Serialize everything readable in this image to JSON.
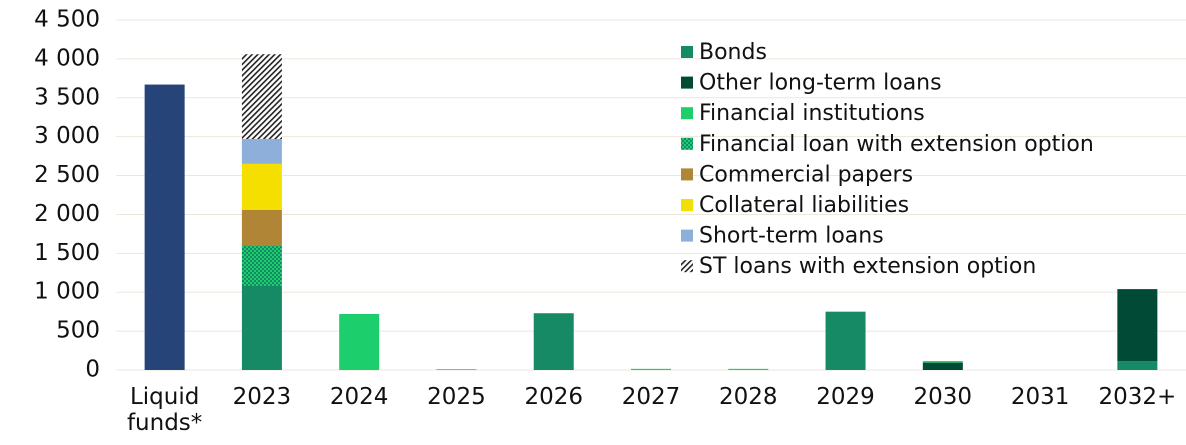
{
  "chart_data": {
    "type": "stacked_bar",
    "categories": [
      "Liquid funds*",
      "2023",
      "2024",
      "2025",
      "2026",
      "2027",
      "2028",
      "2029",
      "2030",
      "2031",
      "2032+"
    ],
    "series": [
      {
        "color": "#264478",
        "values": [
          3670,
          null,
          null,
          null,
          null,
          null,
          null,
          null,
          null,
          null,
          null
        ]
      },
      {
        "name": "Bonds",
        "color": "#168a64",
        "values": [
          null,
          1080,
          null,
          null,
          730,
          null,
          null,
          750,
          null,
          null,
          115
        ]
      },
      {
        "name": "Other long-term loans",
        "color": "#004a36",
        "values": [
          null,
          null,
          null,
          null,
          null,
          null,
          null,
          null,
          95,
          null,
          925
        ]
      },
      {
        "name": "Financial institutions",
        "color": "#1ccf6c",
        "values": [
          null,
          null,
          720,
          10,
          null,
          15,
          15,
          null,
          20,
          null,
          null
        ]
      },
      {
        "name": "Financial loan with extension option",
        "color": "#168a64",
        "pattern": "hatch-green",
        "values": [
          null,
          520,
          null,
          null,
          null,
          null,
          null,
          null,
          null,
          null,
          null
        ]
      },
      {
        "name": "Commercial papers",
        "color": "#b08535",
        "values": [
          null,
          460,
          null,
          null,
          null,
          null,
          null,
          null,
          null,
          null,
          null
        ]
      },
      {
        "name": "Collateral liabilities",
        "color": "#f5df00",
        "values": [
          null,
          590,
          null,
          null,
          null,
          null,
          null,
          null,
          null,
          null,
          null
        ]
      },
      {
        "name": "Short-term loans",
        "color": "#8eafda",
        "values": [
          null,
          320,
          null,
          null,
          null,
          null,
          null,
          null,
          null,
          null,
          null
        ]
      },
      {
        "name": "ST loans with extension option",
        "color": "#ffffff",
        "pattern": "hatch-black",
        "values": [
          null,
          1090,
          null,
          null,
          null,
          null,
          null,
          null,
          null,
          null,
          null
        ]
      }
    ],
    "ylim": [
      0,
      4500
    ],
    "yticks": [
      0,
      500,
      {
        "value": 1000,
        "label": "1 000"
      },
      {
        "value": 1500,
        "label": "1 500"
      },
      {
        "value": 2000,
        "label": "2 000"
      },
      {
        "value": 2500,
        "label": "2 500"
      },
      {
        "value": 3000,
        "label": "3 000"
      },
      {
        "value": 3500,
        "label": "3 500"
      },
      {
        "value": 4000,
        "label": "4 000"
      },
      {
        "value": 4500,
        "label": "4 500"
      }
    ],
    "grid": true,
    "legend": "upper right"
  }
}
